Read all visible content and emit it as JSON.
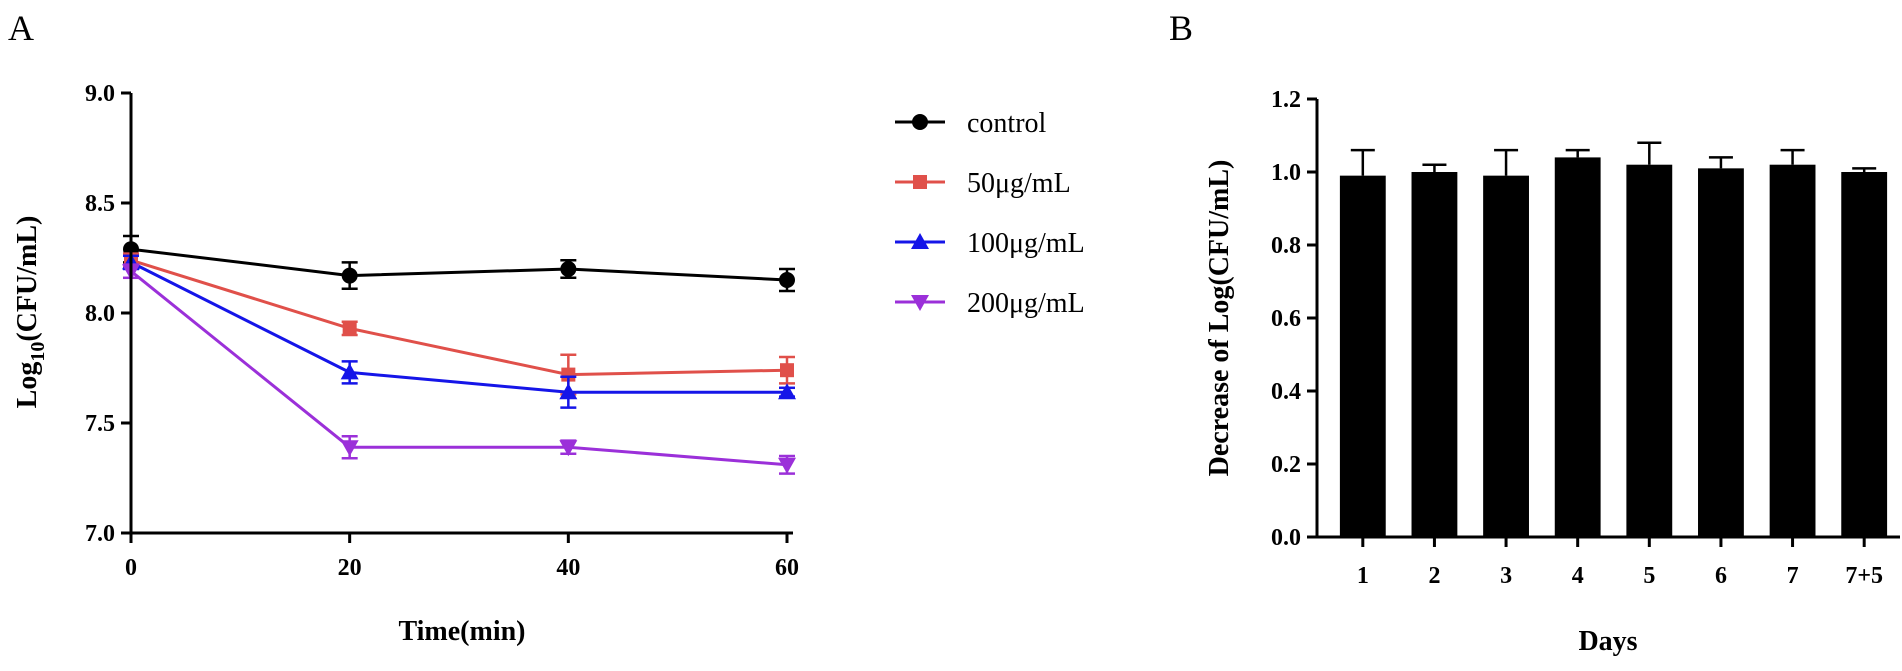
{
  "chart_data": [
    {
      "panel_label": "A",
      "type": "line",
      "xlabel": "Time(min)",
      "ylabel_main": "Log",
      "ylabel_sub": "10",
      "ylabel_tail": "(CFU/mL)",
      "xlim": [
        0,
        60
      ],
      "ylim": [
        7.0,
        9.0
      ],
      "x": [
        0,
        20,
        40,
        60
      ],
      "x_ticks": [
        "0",
        "20",
        "40",
        "60"
      ],
      "y_ticks": [
        7.0,
        7.5,
        8.0,
        8.5,
        9.0
      ],
      "y_tick_labels": [
        "7.0",
        "7.5",
        "8.0",
        "8.5",
        "9.0"
      ],
      "series": [
        {
          "name": "control",
          "color": "#000000",
          "marker": "circle",
          "values": [
            8.29,
            8.17,
            8.2,
            8.15
          ],
          "errors": [
            0.06,
            0.06,
            0.04,
            0.05
          ]
        },
        {
          "name": "50μg/mL",
          "color": "#e0504a",
          "marker": "square",
          "values": [
            8.24,
            7.93,
            7.72,
            7.74
          ],
          "errors": [
            0.03,
            0.03,
            0.09,
            0.06
          ]
        },
        {
          "name": "100μg/mL",
          "color": "#1515e8",
          "marker": "triangle-up",
          "values": [
            8.23,
            7.73,
            7.64,
            7.64
          ],
          "errors": [
            0.03,
            0.05,
            0.07,
            0.02
          ]
        },
        {
          "name": "200μg/mL",
          "color": "#9b30d9",
          "marker": "triangle-down",
          "values": [
            8.19,
            7.39,
            7.39,
            7.31
          ],
          "errors": [
            0.03,
            0.05,
            0.03,
            0.04
          ]
        }
      ],
      "legend_position": "right"
    },
    {
      "panel_label": "B",
      "type": "bar",
      "xlabel": "Days",
      "ylabel": "Decrease of Log(CFU/mL)",
      "categories": [
        "1",
        "2",
        "3",
        "4",
        "5",
        "6",
        "7",
        "7+5"
      ],
      "values": [
        0.99,
        1.0,
        0.99,
        1.04,
        1.02,
        1.01,
        1.02,
        1.0
      ],
      "errors": [
        0.07,
        0.02,
        0.07,
        0.02,
        0.06,
        0.03,
        0.04,
        0.01
      ],
      "bar_color": "#000000",
      "ylim": [
        0.0,
        1.2
      ],
      "y_ticks": [
        0.0,
        0.2,
        0.4,
        0.6,
        0.8,
        1.0,
        1.2
      ],
      "y_tick_labels": [
        "0.0",
        "0.2",
        "0.4",
        "0.6",
        "0.8",
        "1.0",
        "1.2"
      ]
    }
  ]
}
